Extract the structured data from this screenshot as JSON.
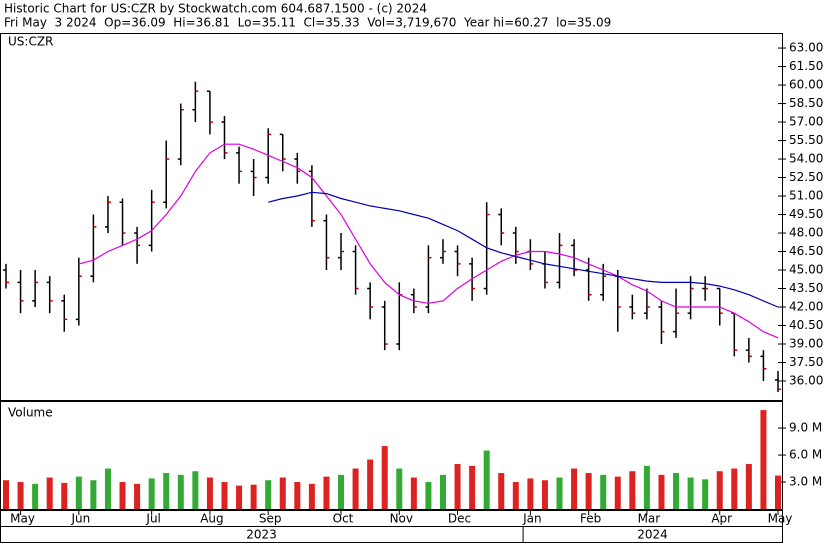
{
  "chart_data": {
    "type": "ohlc",
    "title": "Historic Chart for US:CZR by Stockwatch.com 604.687.1500 - (c) 2024",
    "subtitle": "Fri May  3 2024  Op=36.09  Hi=36.81  Lo=35.11  Cl=35.33  Vol=3,719,670  Year hi=60.27  lo=35.09",
    "symbol": "US:CZR",
    "volume_label": "Volume",
    "categories": [
      null,
      "May",
      null,
      null,
      null,
      "Jun",
      null,
      null,
      null,
      null,
      "Jul",
      null,
      null,
      null,
      "Aug",
      null,
      null,
      null,
      "Sep",
      null,
      null,
      null,
      null,
      "Oct",
      null,
      null,
      null,
      "Nov",
      null,
      null,
      null,
      "Dec",
      null,
      null,
      null,
      null,
      "Jan",
      null,
      null,
      null,
      "Feb",
      null,
      null,
      null,
      "Mar",
      null,
      null,
      null,
      null,
      "Apr",
      null,
      null,
      null,
      "May"
    ],
    "years": [
      "2023",
      "2024"
    ],
    "open": [
      45,
      44,
      42.5,
      44,
      42.5,
      41,
      44.5,
      48.5,
      50.5,
      48,
      47,
      50.5,
      54,
      58,
      59.5,
      57,
      54.5,
      53,
      52.5,
      56,
      54,
      53,
      49,
      46,
      46.5,
      43.5,
      42,
      39,
      43,
      42,
      46,
      46.5,
      45.5,
      43.5,
      49.5,
      48,
      46.5,
      45.5,
      44,
      47,
      45,
      43,
      44.5,
      42,
      41.5,
      42,
      40,
      41.5,
      43.5,
      43.5,
      41.5,
      38.5,
      38,
      36.09
    ],
    "high": [
      45.5,
      45,
      45,
      44.5,
      43,
      46,
      49.5,
      51,
      50.8,
      48.5,
      51.5,
      55.5,
      58.5,
      60.27,
      59.5,
      57.5,
      55,
      54,
      56.5,
      56,
      54.5,
      53.5,
      49.5,
      48,
      47,
      44,
      42.5,
      44,
      43.5,
      47,
      47.5,
      47,
      46,
      50.5,
      50,
      48.5,
      47.5,
      46.5,
      48,
      47.5,
      46,
      45.5,
      45,
      43,
      43.5,
      42.5,
      43.5,
      44.5,
      44.5,
      43.5,
      41.5,
      39.5,
      38.5,
      36.81
    ],
    "low": [
      43.5,
      41.5,
      42,
      41.5,
      40,
      40.5,
      44,
      48,
      47,
      45.5,
      46.5,
      50,
      53.5,
      57,
      56,
      54,
      52,
      51,
      52,
      53,
      52,
      48.5,
      45,
      45,
      43,
      41,
      38.5,
      38.5,
      41.5,
      41.5,
      45.5,
      44.5,
      42.5,
      43,
      47,
      45.5,
      45,
      43.5,
      43.5,
      44.5,
      42.5,
      42.5,
      40,
      41,
      41,
      39,
      39.5,
      41,
      42.5,
      40.5,
      38,
      37.5,
      36,
      35.11
    ],
    "close": [
      44,
      42.5,
      44,
      42.5,
      41,
      44.5,
      48.5,
      50.5,
      48,
      47,
      50.5,
      54,
      58,
      59.5,
      57,
      54.5,
      53,
      52.5,
      56,
      54,
      53,
      49,
      46,
      46.5,
      43.5,
      42,
      39,
      43,
      42,
      46,
      46.5,
      45.5,
      43.5,
      49.5,
      48,
      46.5,
      45.5,
      44,
      47,
      45,
      43,
      44.5,
      42,
      41.5,
      42,
      40,
      41.5,
      43.5,
      43.5,
      41.5,
      38.5,
      38,
      37,
      35.33
    ],
    "volume": [
      3200000,
      3000000,
      2800000,
      3500000,
      2900000,
      3600000,
      3200000,
      4500000,
      3000000,
      2800000,
      3400000,
      4000000,
      3800000,
      4200000,
      3500000,
      3000000,
      2600000,
      2700000,
      3200000,
      3500000,
      3000000,
      2800000,
      3600000,
      3800000,
      4500000,
      5500000,
      7000000,
      4500000,
      3500000,
      3000000,
      3800000,
      5000000,
      4800000,
      6500000,
      4000000,
      3000000,
      3400000,
      3200000,
      3500000,
      4500000,
      4000000,
      3800000,
      3600000,
      4200000,
      4800000,
      3800000,
      4000000,
      3500000,
      3300000,
      4200000,
      4500000,
      5000000,
      11000000,
      3719670
    ],
    "moving_averages": [
      {
        "color": "#e000e0",
        "values": [
          null,
          null,
          null,
          null,
          null,
          45.5,
          45.8,
          46.5,
          47,
          47.5,
          48.2,
          49.5,
          51,
          53,
          54.5,
          55.2,
          55.2,
          54.8,
          54.3,
          53.8,
          53.3,
          52.5,
          51,
          49.5,
          47.5,
          45.5,
          44,
          43,
          42.5,
          42.3,
          42.5,
          43.5,
          44.3,
          45,
          45.7,
          46.2,
          46.5,
          46.5,
          46.3,
          46,
          45.5,
          45,
          44.5,
          43.8,
          43.3,
          42.5,
          42,
          42,
          42,
          42,
          41.5,
          40.8,
          40,
          39.5
        ]
      },
      {
        "color": "#0000b0",
        "values": [
          null,
          null,
          null,
          null,
          null,
          null,
          null,
          null,
          null,
          null,
          null,
          null,
          null,
          null,
          null,
          null,
          null,
          null,
          50.5,
          50.8,
          51,
          51.3,
          51.2,
          50.8,
          50.5,
          50.2,
          50,
          49.8,
          49.5,
          49.2,
          48.7,
          48.2,
          47.5,
          46.8,
          46.4,
          46.1,
          45.8,
          45.5,
          45.3,
          45.1,
          44.9,
          44.7,
          44.5,
          44.3,
          44.1,
          44,
          44,
          44,
          43.9,
          43.7,
          43.4,
          43,
          42.5,
          42
        ]
      }
    ],
    "bar_color": "#000000",
    "close_color": "#c00000",
    "up_color": "#33aa33",
    "down_color": "#dd2222",
    "ylim": [
      34.46,
      64.14
    ],
    "yticks": [
      {
        "value": 63,
        "label": "63.00"
      },
      {
        "value": 61.5,
        "label": "61.50"
      },
      {
        "value": 60,
        "label": "60.00"
      },
      {
        "value": 58.5,
        "label": "58.50"
      },
      {
        "value": 57,
        "label": "57.00"
      },
      {
        "value": 55.5,
        "label": "55.50"
      },
      {
        "value": 54,
        "label": "54.00"
      },
      {
        "value": 52.5,
        "label": "52.50"
      },
      {
        "value": 51,
        "label": "51.00"
      },
      {
        "value": 49.5,
        "label": "49.50"
      },
      {
        "value": 48,
        "label": "48.00"
      },
      {
        "value": 46.5,
        "label": "46.50"
      },
      {
        "value": 45,
        "label": "45.00"
      },
      {
        "value": 43.5,
        "label": "43.50"
      },
      {
        "value": 42,
        "label": "42.00"
      },
      {
        "value": 40.5,
        "label": "40.50"
      },
      {
        "value": 39,
        "label": "39.00"
      },
      {
        "value": 37.5,
        "label": "37.50"
      },
      {
        "value": 36,
        "label": "36.00"
      }
    ],
    "y2lim": [
      0,
      11900000
    ],
    "y2ticks": [
      {
        "value": 3000000,
        "label": "3.0 M"
      },
      {
        "value": 6000000,
        "label": "6.0 M"
      },
      {
        "value": 9000000,
        "label": "9.0 M"
      }
    ],
    "grid": false
  }
}
